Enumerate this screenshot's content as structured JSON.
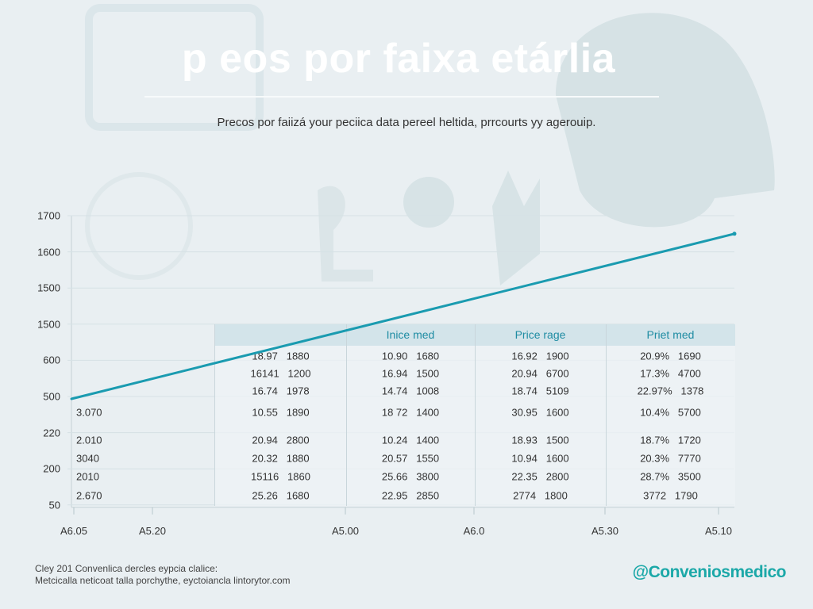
{
  "title": "p eos por faixa etárlia",
  "subtitle": "Precos por faiizá your peciica data pereel heltida, prrcourts yy agerouip.",
  "colors": {
    "line": "#1a9bb0",
    "background": "#e9eff2",
    "header": "#d3e4ea",
    "brand": "#1ba8a8"
  },
  "chart_data": {
    "type": "line",
    "y_ticks": [
      "1700",
      "1600",
      "1500",
      "1500",
      "600",
      "500",
      "220",
      "200",
      "50"
    ],
    "x_ticks": [
      "A6.05",
      "A5.20",
      "A5.00",
      "A6.0",
      "A5.30",
      "A5.10"
    ],
    "series": [
      {
        "points": [
          {
            "x": "A6.05",
            "y": 500
          },
          {
            "x": "end",
            "y": 1650
          }
        ]
      }
    ],
    "grid": true,
    "left_values": [
      "3.070",
      "2.010",
      "3040",
      "2010",
      "2.670"
    ],
    "table": {
      "headers": [
        "",
        "Inice med",
        "Price rage",
        "Priet med"
      ],
      "rows": [
        [
          "18.97   1880",
          "10.90   1680",
          "16.92   1900",
          "20.9%   1690"
        ],
        [
          "16141   1200",
          "16.94   1500",
          "20.94   6700",
          "17.3%   4700"
        ],
        [
          "16.74   1978",
          "14.74   1008",
          "18.74   5109",
          "22.97%   1378"
        ],
        [
          "10.55   1890",
          "18 72   1400",
          "30.95   1600",
          "10.4%   5700"
        ],
        [
          "20.94   2800",
          "10.24   1400",
          "18.93   1500",
          "18.7%   1720"
        ],
        [
          "20.32   1880",
          "20.57   1550",
          "10.94   1600",
          "20.3%   7770"
        ],
        [
          "15116   1860",
          "25.66   3800",
          "22.35   2800",
          "28.7%   3500"
        ],
        [
          "25.26   1680",
          "22.95   2850",
          "2774   1800",
          "3772   1790"
        ]
      ]
    }
  },
  "footer": {
    "line1": "Cley 201 Convenlica dercles eypcia clalice:",
    "line2": "Metcicalla neticoat talla porchythe, eyctoiancla lintorytor.com",
    "brand": "@Conveniosmedico"
  }
}
